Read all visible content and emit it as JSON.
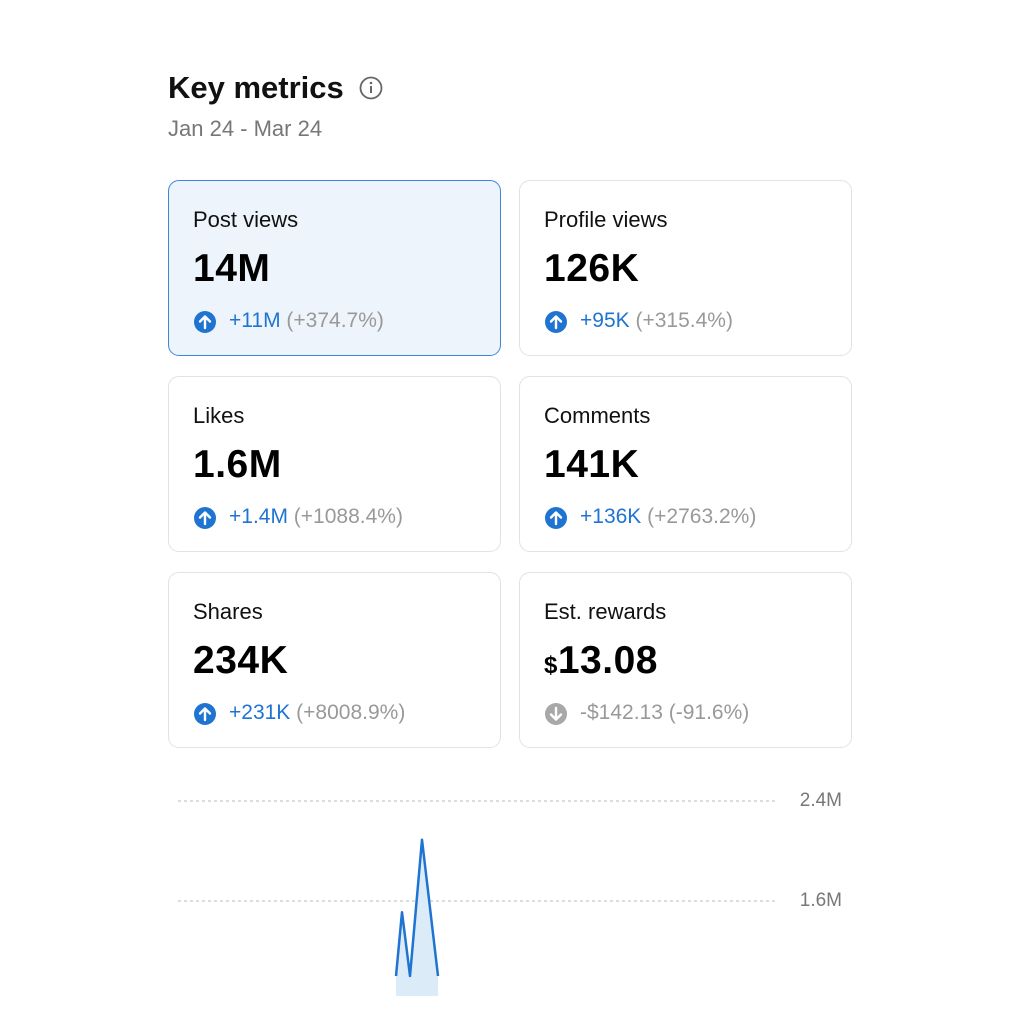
{
  "header": {
    "title": "Key metrics",
    "subtitle": "Jan 24 - Mar 24"
  },
  "cards": [
    {
      "label": "Post views",
      "value": "14M",
      "change": "+11M",
      "percent": "(+374.7%)",
      "direction": "up",
      "selected": true
    },
    {
      "label": "Profile views",
      "value": "126K",
      "change": "+95K",
      "percent": "(+315.4%)",
      "direction": "up",
      "selected": false
    },
    {
      "label": "Likes",
      "value": "1.6M",
      "change": "+1.4M",
      "percent": "(+1088.4%)",
      "direction": "up",
      "selected": false
    },
    {
      "label": "Comments",
      "value": "141K",
      "change": "+136K",
      "percent": "(+2763.2%)",
      "direction": "up",
      "selected": false
    },
    {
      "label": "Shares",
      "value": "234K",
      "change": "+231K",
      "percent": "(+8008.9%)",
      "direction": "up",
      "selected": false
    },
    {
      "label": "Est. rewards",
      "currency": "$",
      "value": "13.08",
      "change": "-$142.13",
      "percent": "(-91.6%)",
      "direction": "down",
      "selected": false
    }
  ],
  "chart_data": {
    "type": "line",
    "color": "#1f74d1",
    "x": [
      21.8,
      22.4,
      23.2,
      24.4,
      26
    ],
    "values": [
      1000000,
      1510000,
      1000000,
      2090000,
      1000000
    ],
    "xlim": [
      0,
      60
    ],
    "ylim": [
      1000000,
      2400000
    ],
    "yticks": [
      {
        "value": 2400000,
        "label": "2.4M"
      },
      {
        "value": 1600000,
        "label": "1.6M"
      }
    ],
    "grid": true
  }
}
